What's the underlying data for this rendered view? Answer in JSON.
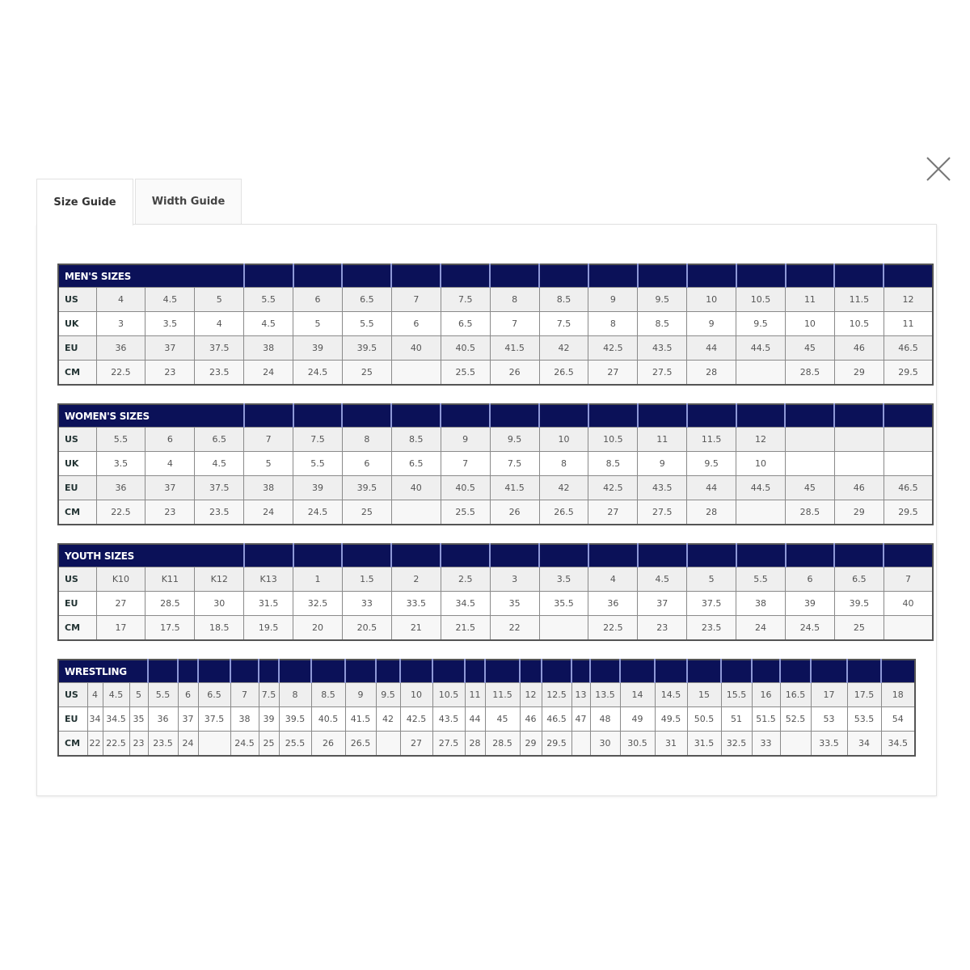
{
  "tabs": [
    {
      "label": "Size Guide",
      "active": true
    },
    {
      "label": "Width Guide",
      "active": false
    }
  ],
  "close_icon": "close-x-icon",
  "colors": {
    "header": "#0b1158",
    "header_divider": "#8e98d6",
    "row_alt": "#efefef"
  },
  "tables": [
    {
      "title": "MEN'S SIZES",
      "rows": [
        {
          "label": "US",
          "values": [
            "4",
            "4.5",
            "5",
            "5.5",
            "6",
            "6.5",
            "7",
            "7.5",
            "8",
            "8.5",
            "9",
            "9.5",
            "10",
            "10.5",
            "11",
            "11.5",
            "12"
          ]
        },
        {
          "label": "UK",
          "values": [
            "3",
            "3.5",
            "4",
            "4.5",
            "5",
            "5.5",
            "6",
            "6.5",
            "7",
            "7.5",
            "8",
            "8.5",
            "9",
            "9.5",
            "10",
            "10.5",
            "11"
          ]
        },
        {
          "label": "EU",
          "values": [
            "36",
            "37",
            "37.5",
            "38",
            "39",
            "39.5",
            "40",
            "40.5",
            "41.5",
            "42",
            "42.5",
            "43.5",
            "44",
            "44.5",
            "45",
            "46",
            "46.5"
          ]
        },
        {
          "label": "CM",
          "values": [
            "22.5",
            "23",
            "23.5",
            "24",
            "24.5",
            "25",
            "",
            "25.5",
            "26",
            "26.5",
            "27",
            "27.5",
            "28",
            "",
            "28.5",
            "29",
            "29.5"
          ]
        }
      ]
    },
    {
      "title": "WOMEN'S SIZES",
      "rows": [
        {
          "label": "US",
          "values": [
            "5.5",
            "6",
            "6.5",
            "7",
            "7.5",
            "8",
            "8.5",
            "9",
            "9.5",
            "10",
            "10.5",
            "11",
            "11.5",
            "12",
            "",
            "",
            ""
          ]
        },
        {
          "label": "UK",
          "values": [
            "3.5",
            "4",
            "4.5",
            "5",
            "5.5",
            "6",
            "6.5",
            "7",
            "7.5",
            "8",
            "8.5",
            "9",
            "9.5",
            "10",
            "",
            "",
            ""
          ]
        },
        {
          "label": "EU",
          "values": [
            "36",
            "37",
            "37.5",
            "38",
            "39",
            "39.5",
            "40",
            "40.5",
            "41.5",
            "42",
            "42.5",
            "43.5",
            "44",
            "44.5",
            "45",
            "46",
            "46.5"
          ]
        },
        {
          "label": "CM",
          "values": [
            "22.5",
            "23",
            "23.5",
            "24",
            "24.5",
            "25",
            "",
            "25.5",
            "26",
            "26.5",
            "27",
            "27.5",
            "28",
            "",
            "28.5",
            "29",
            "29.5"
          ]
        }
      ]
    },
    {
      "title": "YOUTH SIZES",
      "rows": [
        {
          "label": "US",
          "values": [
            "K10",
            "K11",
            "K12",
            "K13",
            "1",
            "1.5",
            "2",
            "2.5",
            "3",
            "3.5",
            "4",
            "4.5",
            "5",
            "5.5",
            "6",
            "6.5",
            "7"
          ]
        },
        {
          "label": "EU",
          "values": [
            "27",
            "28.5",
            "30",
            "31.5",
            "32.5",
            "33",
            "33.5",
            "34.5",
            "35",
            "35.5",
            "36",
            "37",
            "37.5",
            "38",
            "39",
            "39.5",
            "40"
          ]
        },
        {
          "label": "CM",
          "values": [
            "17",
            "17.5",
            "18.5",
            "19.5",
            "20",
            "20.5",
            "21",
            "21.5",
            "22",
            "",
            "22.5",
            "23",
            "23.5",
            "24",
            "24.5",
            "25",
            ""
          ]
        }
      ]
    },
    {
      "title": "WRESTLING",
      "rows": [
        {
          "label": "US",
          "values": [
            "4",
            "4.5",
            "5",
            "5.5",
            "6",
            "6.5",
            "7",
            "7.5",
            "8",
            "8.5",
            "9",
            "9.5",
            "10",
            "10.5",
            "11",
            "11.5",
            "12",
            "12.5",
            "13",
            "13.5",
            "14",
            "14.5",
            "15",
            "15.5",
            "16",
            "16.5",
            "17",
            "17.5",
            "18"
          ]
        },
        {
          "label": "EU",
          "values": [
            "34",
            "34.5",
            "35",
            "36",
            "37",
            "37.5",
            "38",
            "39",
            "39.5",
            "40.5",
            "41.5",
            "42",
            "42.5",
            "43.5",
            "44",
            "45",
            "46",
            "46.5",
            "47",
            "48",
            "49",
            "49.5",
            "50.5",
            "51",
            "51.5",
            "52.5",
            "53",
            "53.5",
            "54"
          ]
        },
        {
          "label": "CM",
          "values": [
            "22",
            "22.5",
            "23",
            "23.5",
            "24",
            "",
            "24.5",
            "25",
            "25.5",
            "26",
            "26.5",
            "",
            "27",
            "27.5",
            "28",
            "28.5",
            "29",
            "29.5",
            "",
            "30",
            "30.5",
            "31",
            "31.5",
            "32.5",
            "33",
            "",
            "33.5",
            "34",
            "34.5"
          ]
        }
      ]
    }
  ]
}
